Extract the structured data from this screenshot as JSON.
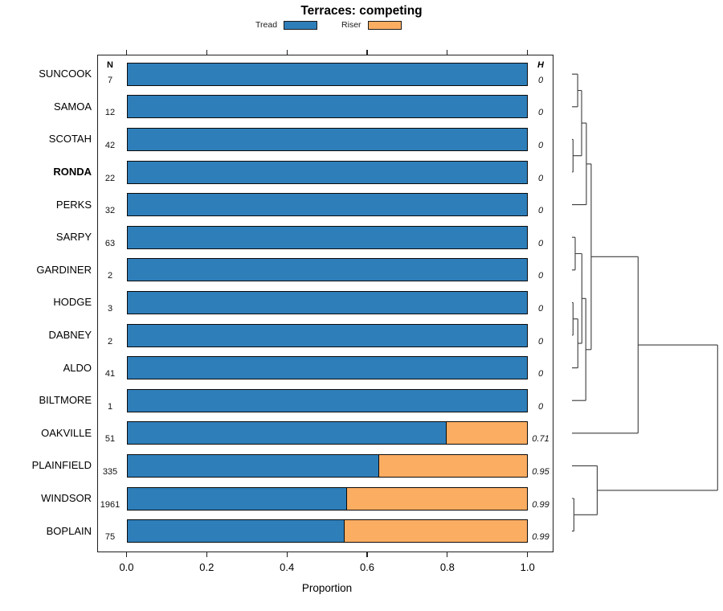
{
  "chart_data": {
    "type": "bar",
    "orientation": "horizontal_stacked_proportion",
    "title": "Terraces: competing",
    "xlabel": "Proportion",
    "xlim": [
      0,
      1
    ],
    "x_ticks": [
      "0.0",
      "0.2",
      "0.4",
      "0.6",
      "0.8",
      "1.0"
    ],
    "grid": false,
    "legend_position": "top",
    "n_header": "N",
    "h_header": "H",
    "series": [
      {
        "name": "Tread",
        "color": "#2E7EB9"
      },
      {
        "name": "Riser",
        "color": "#FBAD62"
      }
    ],
    "rows": [
      {
        "label": "SUNCOOK",
        "bold": false,
        "n": "7",
        "h": "0",
        "tread": 1.0,
        "riser": 0.0
      },
      {
        "label": "SAMOA",
        "bold": false,
        "n": "12",
        "h": "0",
        "tread": 1.0,
        "riser": 0.0
      },
      {
        "label": "SCOTAH",
        "bold": false,
        "n": "42",
        "h": "0",
        "tread": 1.0,
        "riser": 0.0
      },
      {
        "label": "RONDA",
        "bold": true,
        "n": "22",
        "h": "0",
        "tread": 1.0,
        "riser": 0.0
      },
      {
        "label": "PERKS",
        "bold": false,
        "n": "32",
        "h": "0",
        "tread": 1.0,
        "riser": 0.0
      },
      {
        "label": "SARPY",
        "bold": false,
        "n": "63",
        "h": "0",
        "tread": 1.0,
        "riser": 0.0
      },
      {
        "label": "GARDINER",
        "bold": false,
        "n": "2",
        "h": "0",
        "tread": 1.0,
        "riser": 0.0
      },
      {
        "label": "HODGE",
        "bold": false,
        "n": "3",
        "h": "0",
        "tread": 1.0,
        "riser": 0.0
      },
      {
        "label": "DABNEY",
        "bold": false,
        "n": "2",
        "h": "0",
        "tread": 1.0,
        "riser": 0.0
      },
      {
        "label": "ALDO",
        "bold": false,
        "n": "41",
        "h": "0",
        "tread": 1.0,
        "riser": 0.0
      },
      {
        "label": "BILTMORE",
        "bold": false,
        "n": "1",
        "h": "0",
        "tread": 1.0,
        "riser": 0.0
      },
      {
        "label": "OAKVILLE",
        "bold": false,
        "n": "51",
        "h": "0.71",
        "tread": 0.8,
        "riser": 0.2
      },
      {
        "label": "PLAINFIELD",
        "bold": false,
        "n": "335",
        "h": "0.95",
        "tread": 0.63,
        "riser": 0.37
      },
      {
        "label": "WINDSOR",
        "bold": false,
        "n": "1961",
        "h": "0.99",
        "tread": 0.55,
        "riser": 0.45
      },
      {
        "label": "BOPLAIN",
        "bold": false,
        "n": "75",
        "h": "0.99",
        "tread": 0.545,
        "riser": 0.455
      }
    ],
    "dendrogram": {
      "merges": [
        {
          "id": "M1",
          "a": "SUNCOOK",
          "b": "SAMOA",
          "height": 0.039
        },
        {
          "id": "M2",
          "a": "SCOTAH",
          "b": "RONDA",
          "height": 0.007
        },
        {
          "id": "M3",
          "a": "M1",
          "b": "M2",
          "height": 0.066
        },
        {
          "id": "M4",
          "a": "M3",
          "b": "PERKS",
          "height": 0.099
        },
        {
          "id": "M5",
          "a": "SARPY",
          "b": "GARDINER",
          "height": 0.022
        },
        {
          "id": "M6",
          "a": "HODGE",
          "b": "DABNEY",
          "height": 0.007
        },
        {
          "id": "M7",
          "a": "M6",
          "b": "ALDO",
          "height": 0.04
        },
        {
          "id": "M8",
          "a": "M5",
          "b": "M7",
          "height": 0.068
        },
        {
          "id": "M9",
          "a": "M8",
          "b": "BILTMORE",
          "height": 0.095
        },
        {
          "id": "M10",
          "a": "M4",
          "b": "M9",
          "height": 0.132
        },
        {
          "id": "M11",
          "a": "M10",
          "b": "OAKVILLE",
          "height": 0.454
        },
        {
          "id": "M12",
          "a": "WINDSOR",
          "b": "BOPLAIN",
          "height": 0.013
        },
        {
          "id": "M13",
          "a": "PLAINFIELD",
          "b": "M12",
          "height": 0.173
        },
        {
          "id": "M14",
          "a": "M11",
          "b": "M13",
          "height": 1.0
        }
      ]
    }
  }
}
